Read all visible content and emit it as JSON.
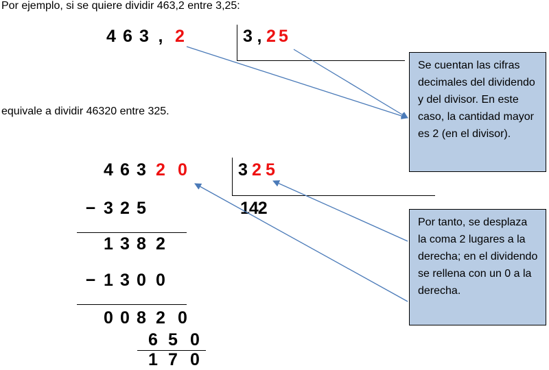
{
  "intro_text": "Por ejemplo, si se quiere dividir 463,2 entre 3,25:",
  "equivalence_text": "equivale a dividir 46320 entre 325.",
  "first_division": {
    "dividend_digits": [
      "4",
      "6",
      "3",
      ",",
      "2"
    ],
    "divisor_digits": [
      "3",
      ",",
      "2",
      "5"
    ]
  },
  "second_division": {
    "dividend_digits": [
      "4",
      "6",
      "3",
      "2",
      "0"
    ],
    "divisor_digits": [
      "3",
      "2",
      "5"
    ],
    "quotient": "142",
    "steps": [
      {
        "sign": "−",
        "digits": [
          "3",
          "2",
          "5"
        ]
      },
      {
        "sign": "",
        "digits": [
          "1",
          "3",
          "8",
          "2"
        ]
      },
      {
        "sign": "−",
        "digits": [
          "1",
          "3",
          "0",
          "0"
        ]
      },
      {
        "sign": "",
        "digits": [
          "0",
          "0",
          "8",
          "2",
          "0"
        ]
      },
      {
        "sign": "",
        "digits": [
          "6",
          "5",
          "0"
        ]
      },
      {
        "sign": "",
        "digits": [
          "1",
          "7",
          "0"
        ]
      }
    ]
  },
  "callouts": {
    "decimals_note": "Se cuentan las cifras decimales del dividendo y del divisor. En este caso, la cantidad mayor es 2 (en el divisor).",
    "shift_note": "Por tanto, se desplaza la coma 2 lugares a la derecha; en el dividendo se rellena con un 0 a la derecha."
  },
  "colors": {
    "highlight": "#ee1111",
    "callout_fill": "#b8cce4",
    "arrow": "#4a7ab8"
  }
}
